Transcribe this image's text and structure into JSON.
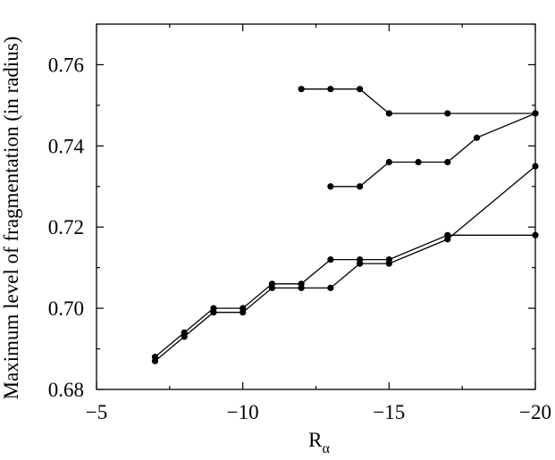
{
  "chart_data": {
    "type": "line",
    "title": "",
    "xlabel": "R",
    "xlabel_sub": "α",
    "ylabel": "Maximum level of fragmentation (in radius)",
    "xlim": [
      -5,
      -20
    ],
    "ylim": [
      0.68,
      0.77
    ],
    "x_ticks": [
      -5,
      -10,
      -15,
      -20
    ],
    "x_tick_labels": [
      "−5",
      "−10",
      "−15",
      "−20"
    ],
    "y_ticks": [
      0.68,
      0.7,
      0.72,
      0.74,
      0.76
    ],
    "y_tick_labels": [
      "0.68",
      "0.70",
      "0.72",
      "0.74",
      "0.76"
    ],
    "grid": false,
    "legend": "none",
    "series": [
      {
        "x": [
          -12,
          -13,
          -14,
          -15,
          -17,
          -20
        ],
        "y": [
          0.754,
          0.754,
          0.754,
          0.748,
          0.748,
          0.748
        ]
      },
      {
        "x": [
          -13,
          -14,
          -15,
          -16,
          -17,
          -18,
          -20
        ],
        "y": [
          0.73,
          0.73,
          0.736,
          0.736,
          0.736,
          0.742,
          0.748
        ]
      },
      {
        "x": [
          -7,
          -8,
          -9,
          -10,
          -11,
          -12,
          -13,
          -14,
          -15,
          -17,
          -20
        ],
        "y": [
          0.688,
          0.694,
          0.7,
          0.7,
          0.706,
          0.706,
          0.712,
          0.712,
          0.712,
          0.718,
          0.718
        ]
      },
      {
        "x": [
          -7,
          -8,
          -9,
          -10,
          -11,
          -12,
          -13,
          -14,
          -15,
          -17,
          -20
        ],
        "y": [
          0.687,
          0.693,
          0.699,
          0.699,
          0.705,
          0.705,
          0.705,
          0.711,
          0.711,
          0.717,
          0.735
        ]
      }
    ]
  }
}
